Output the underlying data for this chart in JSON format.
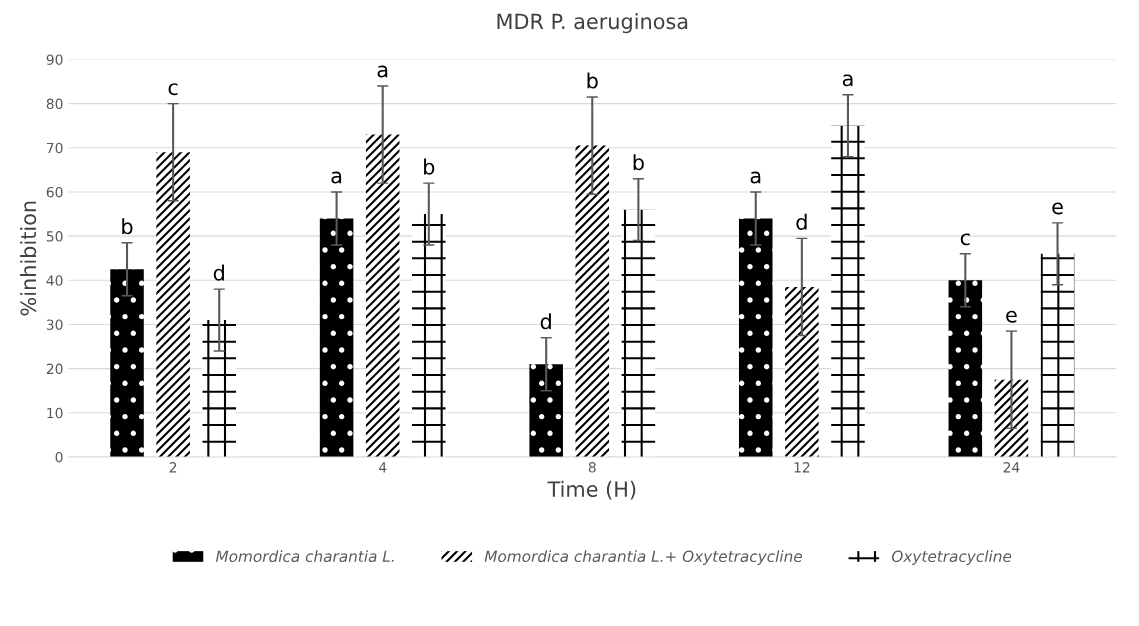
{
  "chart_data": {
    "type": "bar",
    "title": "MDR P. aeruginosa",
    "xlabel": "Time (H)",
    "ylabel": "%inhibition",
    "categories": [
      "2",
      "4",
      "8",
      "12",
      "24"
    ],
    "series": [
      {
        "name": "Momordica charantia L.",
        "color": "#000000",
        "values": [
          42.5,
          54,
          21,
          54,
          40
        ],
        "errors": [
          6,
          6,
          6,
          6,
          6
        ],
        "value_labels": [
          "b",
          "a",
          "d",
          "a",
          "c"
        ]
      },
      {
        "name": "Momordica charantia L.+ Oxytetracycline",
        "color": "#ffffff",
        "values": [
          69,
          73,
          70.5,
          38.5,
          17.5
        ],
        "errors": [
          11,
          11,
          11,
          11,
          11
        ],
        "value_labels": [
          "c",
          "a",
          "b",
          "d",
          "e"
        ]
      },
      {
        "name": "Oxytetracycline",
        "color": "#ffffff",
        "values": [
          31,
          55,
          56,
          75,
          46
        ],
        "errors": [
          7,
          7,
          7,
          7,
          7
        ],
        "value_labels": [
          "d",
          "b",
          "b",
          "a",
          "e"
        ]
      }
    ],
    "ylim": [
      0,
      90
    ],
    "yticks": [
      0,
      10,
      20,
      30,
      40,
      50,
      60,
      70,
      80,
      90
    ],
    "grid": "y",
    "legend": "bottom"
  }
}
